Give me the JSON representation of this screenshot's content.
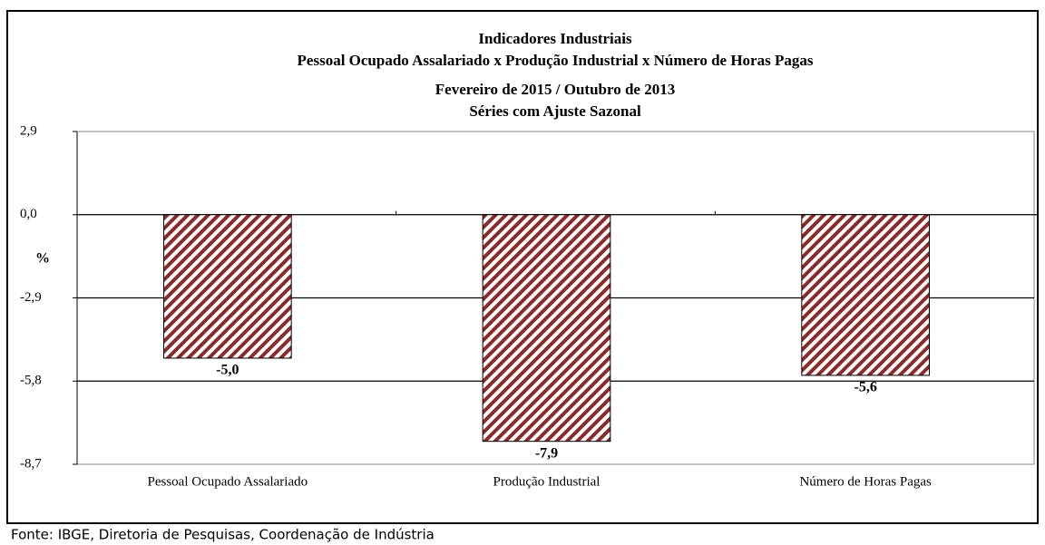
{
  "chart_data": {
    "type": "bar",
    "title": "Indicadores Industriais",
    "subtitle": [
      "Pessoal Ocupado Assalariado x Produção Industrial x Número de Horas Pagas",
      "Fevereiro de 2015 / Outubro de 2013",
      "Séries com Ajuste Sazonal"
    ],
    "y_label": "%",
    "categories": [
      "Pessoal Ocupado Assalariado",
      "Produção Industrial",
      "Número de Horas Pagas"
    ],
    "values": [
      -5.0,
      -7.9,
      -5.6
    ],
    "value_labels": [
      "-5,0",
      "-7,9",
      "-5,6"
    ],
    "color": "#8b2a2a",
    "ylim": [
      -8.7,
      2.9
    ],
    "yticks": [
      {
        "value": 2.9,
        "label": "2,9"
      },
      {
        "value": 0,
        "label": "0,0"
      },
      {
        "value": -2.9,
        "label": "-2,9"
      },
      {
        "value": -5.8,
        "label": "-5,8"
      },
      {
        "value": -8.7,
        "label": "-8,7"
      }
    ],
    "grid": true,
    "source": "Fonte: IBGE, Diretoria de Pesquisas, Coordenação de Indústria"
  }
}
